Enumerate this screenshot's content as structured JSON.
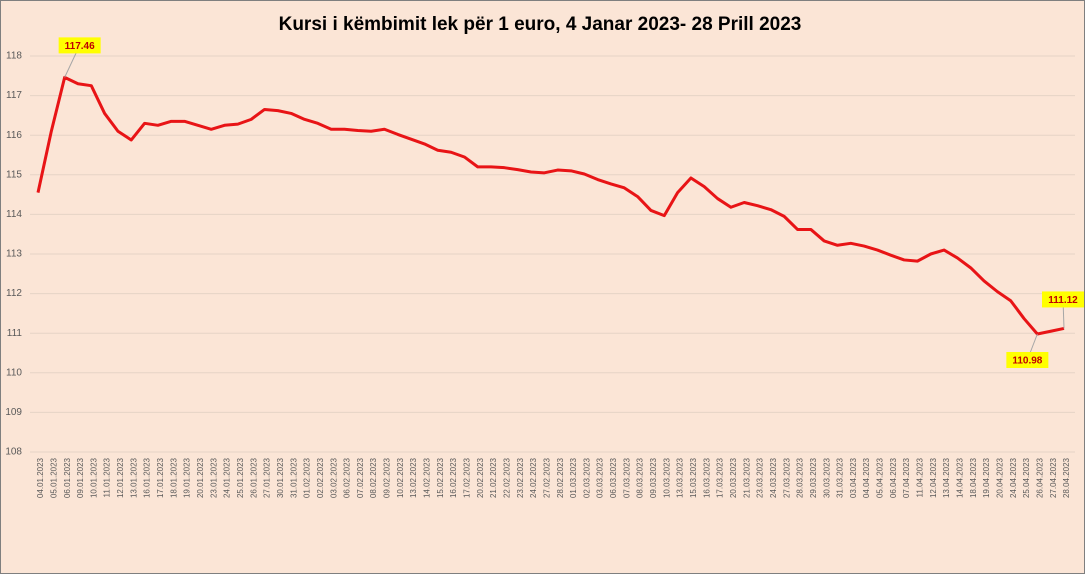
{
  "chart_data": {
    "type": "line",
    "title": "Kursi i këmbimit lek për 1 euro, 4 Janar 2023- 28 Prill 2023",
    "categories": [
      "04.01.2023",
      "05.01.2023",
      "06.01.2023",
      "09.01.2023",
      "10.01.2023",
      "11.01.2023",
      "12.01.2023",
      "13.01.2023",
      "16.01.2023",
      "17.01.2023",
      "18.01.2023",
      "19.01.2023",
      "20.01.2023",
      "23.01.2023",
      "24.01.2023",
      "25.01.2023",
      "26.01.2023",
      "27.01.2023",
      "30.01.2023",
      "31.01.2023",
      "01.02.2023",
      "02.02.2023",
      "03.02.2023",
      "06.02.2023",
      "07.02.2023",
      "08.02.2023",
      "09.02.2023",
      "10.02.2023",
      "13.02.2023",
      "14.02.2023",
      "15.02.2023",
      "16.02.2023",
      "17.02.2023",
      "20.02.2023",
      "21.02.2023",
      "22.02.2023",
      "23.02.2023",
      "24.02.2023",
      "27.02.2023",
      "28.02.2023",
      "01.03.2023",
      "02.03.2023",
      "03.03.2023",
      "06.03.2023",
      "07.03.2023",
      "08.03.2023",
      "09.03.2023",
      "10.03.2023",
      "13.03.2023",
      "15.03.2023",
      "16.03.2023",
      "17.03.2023",
      "20.03.2023",
      "21.03.2023",
      "23.03.2023",
      "24.03.2023",
      "27.03.2023",
      "28.03.2023",
      "29.03.2023",
      "30.03.2023",
      "31.03.2023",
      "03.04.2023",
      "04.04.2023",
      "05.04.2023",
      "06.04.2023",
      "07.04.2023",
      "11.04.2023",
      "12.04.2023",
      "13.04.2023",
      "14.04.2023",
      "18.04.2023",
      "19.04.2023",
      "20.04.2023",
      "24.04.2023",
      "25.04.2023",
      "26.04.2023",
      "27.04.2023",
      "28.04.2023"
    ],
    "series": [
      {
        "name": "Kursi",
        "color": "#e81416",
        "values": [
          114.55,
          116.1,
          117.46,
          117.3,
          117.25,
          116.55,
          116.1,
          115.88,
          116.3,
          116.25,
          116.35,
          116.35,
          116.25,
          116.15,
          116.25,
          116.28,
          116.4,
          116.65,
          116.62,
          116.55,
          116.4,
          116.3,
          116.15,
          116.15,
          116.12,
          116.1,
          116.15,
          116.02,
          115.9,
          115.78,
          115.62,
          115.57,
          115.45,
          115.2,
          115.2,
          115.18,
          115.13,
          115.07,
          115.05,
          115.12,
          115.1,
          115.02,
          114.88,
          114.77,
          114.67,
          114.45,
          114.1,
          113.97,
          114.55,
          114.92,
          114.7,
          114.4,
          114.18,
          114.3,
          114.22,
          114.12,
          113.95,
          113.62,
          113.62,
          113.33,
          113.22,
          113.27,
          113.2,
          113.1,
          112.97,
          112.85,
          112.82,
          113.0,
          113.1,
          112.9,
          112.65,
          112.32,
          112.05,
          111.82,
          111.37,
          110.98,
          111.05,
          111.12
        ],
        "value_labels": [
          null,
          null,
          "117.46",
          null,
          null,
          null,
          null,
          null,
          null,
          null,
          null,
          null,
          null,
          null,
          null,
          null,
          null,
          null,
          null,
          null,
          null,
          null,
          null,
          null,
          null,
          null,
          null,
          null,
          null,
          null,
          null,
          null,
          null,
          null,
          null,
          null,
          null,
          null,
          null,
          null,
          null,
          null,
          null,
          null,
          null,
          null,
          null,
          null,
          null,
          null,
          null,
          null,
          null,
          null,
          null,
          null,
          null,
          null,
          null,
          null,
          null,
          null,
          null,
          null,
          null,
          null,
          null,
          null,
          null,
          null,
          null,
          null,
          null,
          null,
          null,
          "110.98",
          null,
          "111.12"
        ]
      }
    ],
    "ylim": [
      108,
      118
    ],
    "yticks": [
      108,
      109,
      110,
      111,
      112,
      113,
      114,
      115,
      116,
      117,
      118
    ],
    "grid": true
  }
}
